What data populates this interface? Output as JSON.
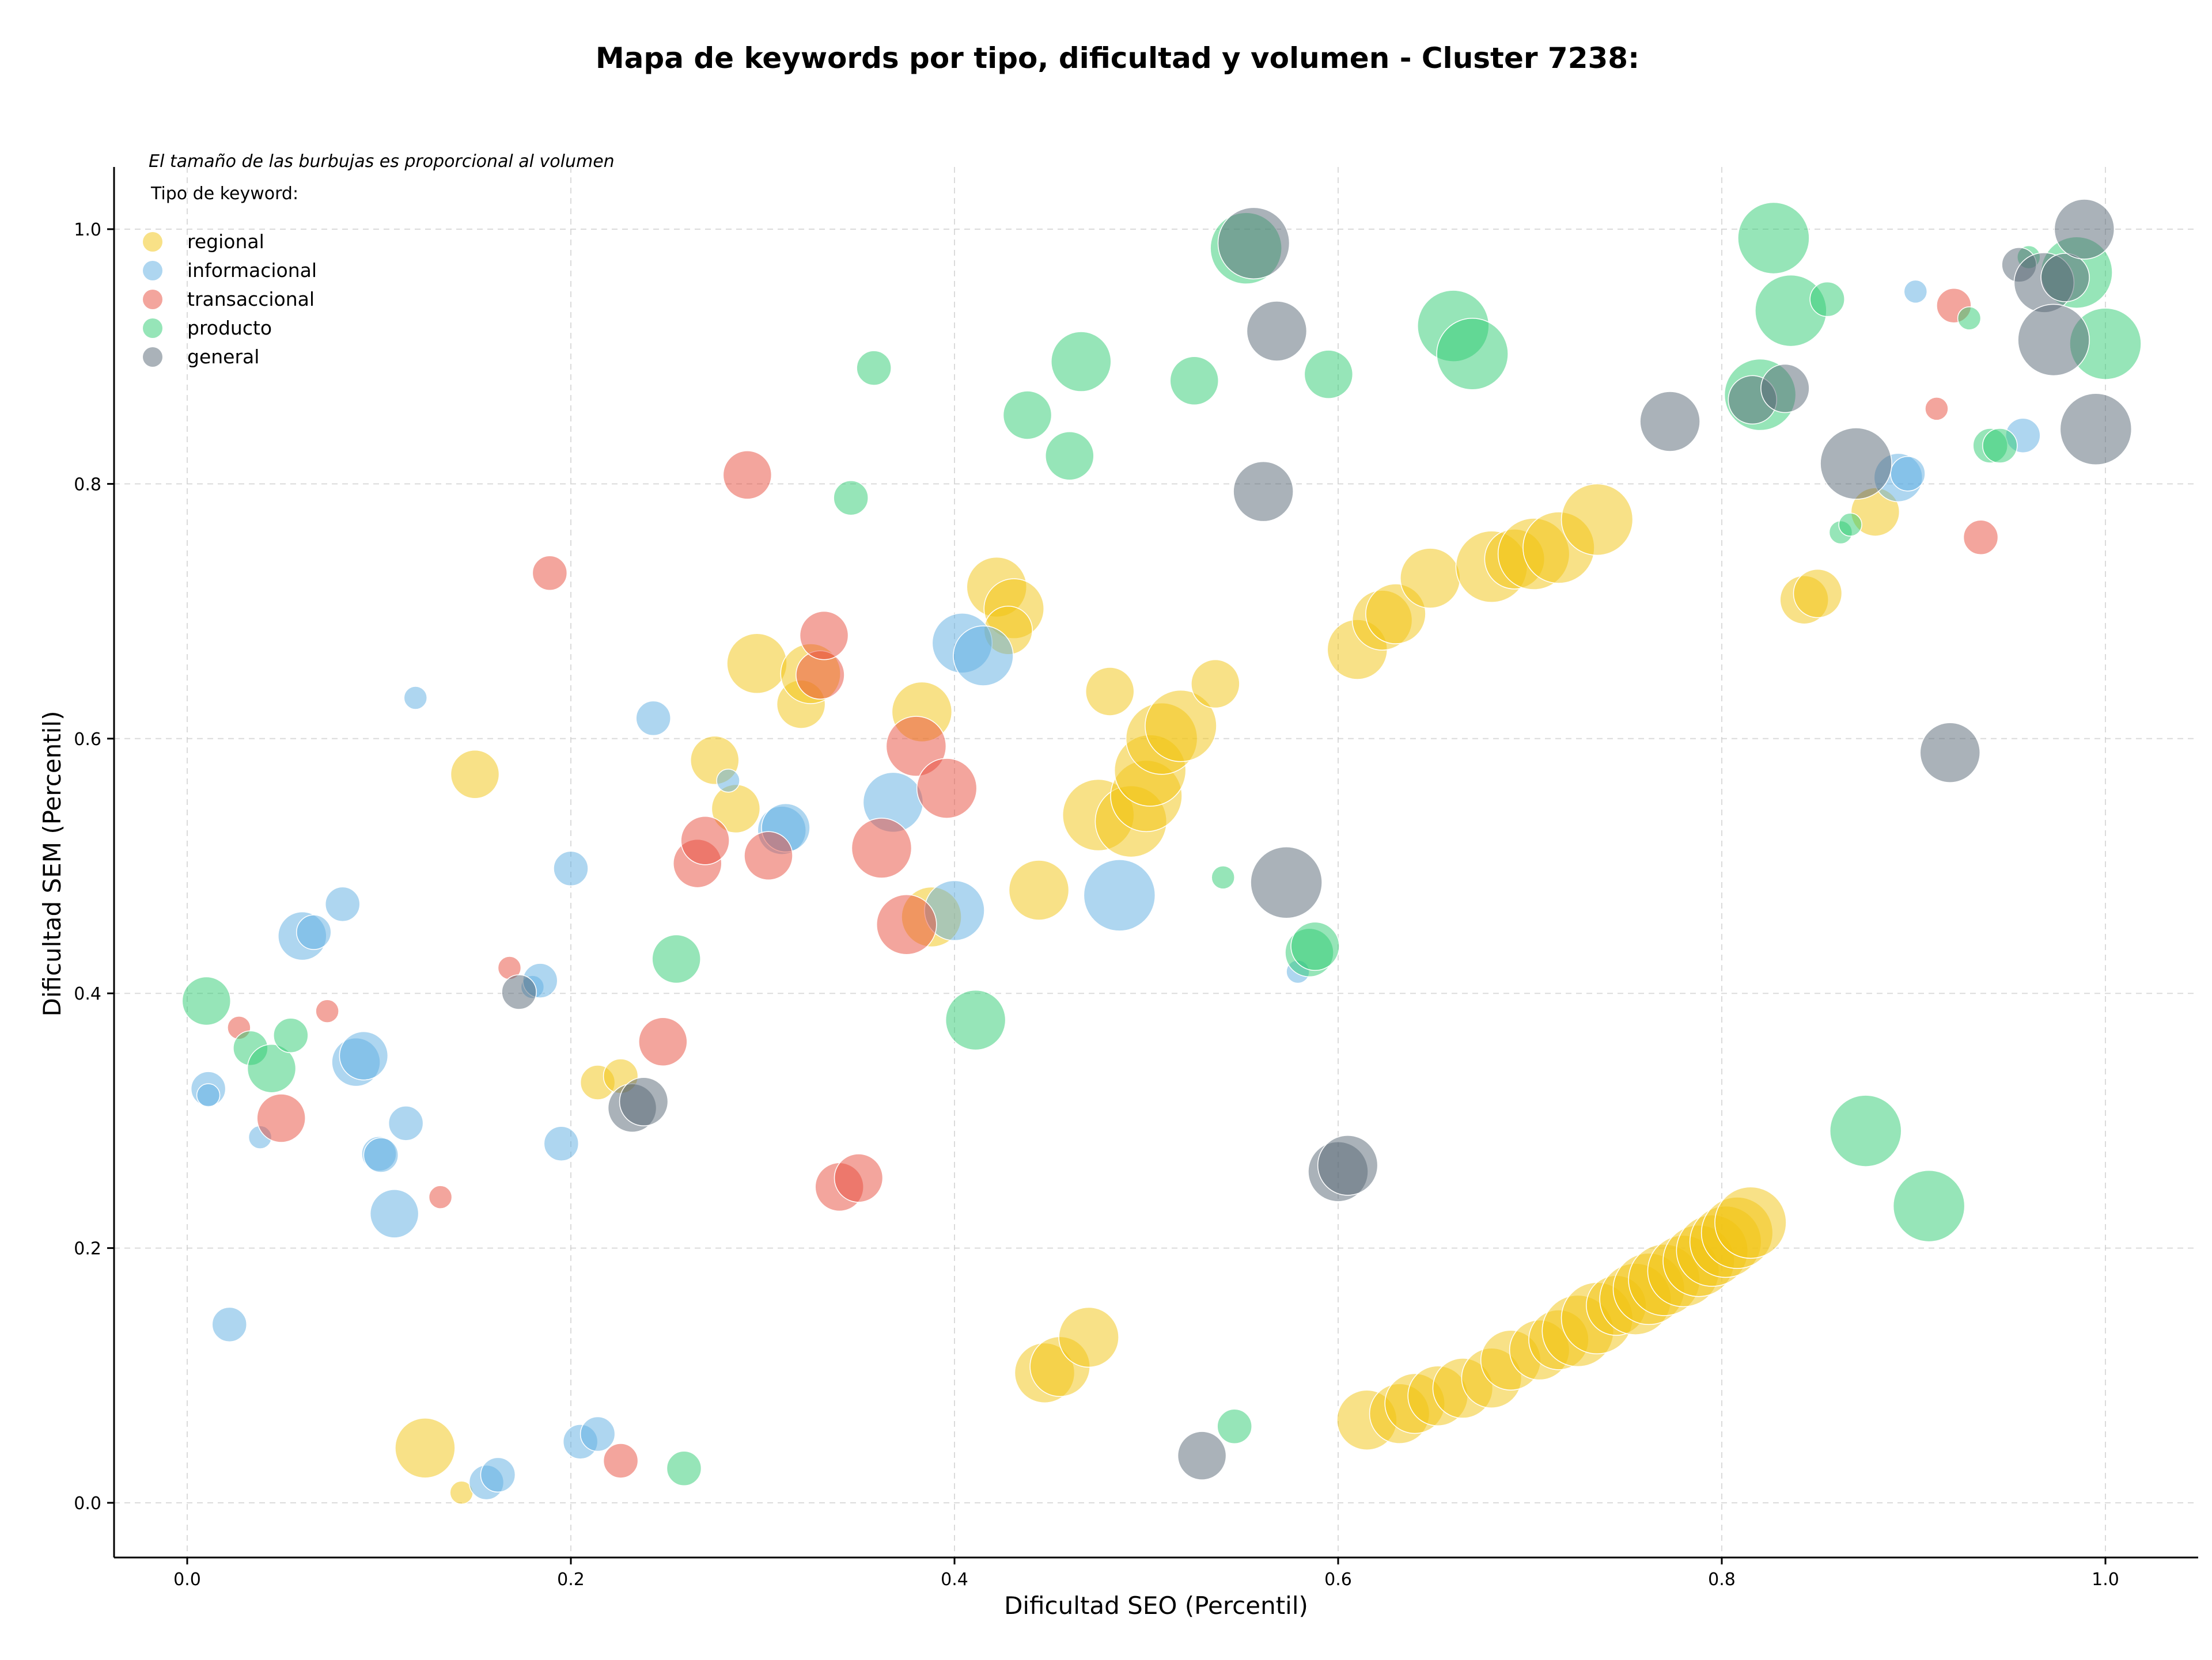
{
  "chart_data": {
    "type": "scatter",
    "title": "Mapa de keywords por tipo, dificultad y volumen - Cluster 7238:",
    "xlabel": "Dificultad SEO (Percentil)",
    "ylabel": "Dificultad SEM (Percentil)",
    "xlim": [
      -0.04,
      1.05
    ],
    "ylim": [
      -0.04,
      1.05
    ],
    "xticks": [
      "0.0",
      "0.2",
      "0.4",
      "0.6",
      "0.8",
      "1.0"
    ],
    "yticks": [
      "0.0",
      "0.2",
      "0.4",
      "0.6",
      "0.8",
      "1.0"
    ],
    "grid": true,
    "size_note": "El tamaño de las burbujas es proporcional al volumen",
    "legend_title": "Tipo de keyword:",
    "legend_position": "top-left",
    "series": [
      {
        "name": "regional",
        "color": "#f1c40f",
        "points": [
          [
            0.15,
            0.572,
            3
          ],
          [
            0.124,
            0.043,
            4
          ],
          [
            0.143,
            0.008,
            1
          ],
          [
            0.214,
            0.33,
            2
          ],
          [
            0.226,
            0.335,
            2
          ],
          [
            0.275,
            0.583,
            3
          ],
          [
            0.286,
            0.545,
            3
          ],
          [
            0.297,
            0.659,
            4
          ],
          [
            0.32,
            0.627,
            3
          ],
          [
            0.325,
            0.651,
            4
          ],
          [
            0.383,
            0.621,
            4
          ],
          [
            0.388,
            0.46,
            4
          ],
          [
            0.422,
            0.719,
            4
          ],
          [
            0.431,
            0.702,
            4
          ],
          [
            0.428,
            0.685,
            3
          ],
          [
            0.444,
            0.481,
            4
          ],
          [
            0.481,
            0.637,
            3
          ],
          [
            0.475,
            0.54,
            5
          ],
          [
            0.492,
            0.535,
            5
          ],
          [
            0.5,
            0.555,
            5
          ],
          [
            0.502,
            0.575,
            5
          ],
          [
            0.508,
            0.6,
            5
          ],
          [
            0.518,
            0.61,
            5
          ],
          [
            0.536,
            0.643,
            3
          ],
          [
            0.447,
            0.102,
            4
          ],
          [
            0.455,
            0.107,
            4
          ],
          [
            0.47,
            0.13,
            4
          ],
          [
            0.61,
            0.67,
            4
          ],
          [
            0.623,
            0.693,
            4
          ],
          [
            0.63,
            0.698,
            4
          ],
          [
            0.648,
            0.726,
            4
          ],
          [
            0.68,
            0.735,
            5
          ],
          [
            0.692,
            0.741,
            4
          ],
          [
            0.702,
            0.745,
            5
          ],
          [
            0.715,
            0.75,
            5
          ],
          [
            0.735,
            0.772,
            5
          ],
          [
            0.843,
            0.709,
            3
          ],
          [
            0.85,
            0.714,
            3
          ],
          [
            0.88,
            0.778,
            3
          ],
          [
            0.615,
            0.065,
            4
          ],
          [
            0.632,
            0.07,
            4
          ],
          [
            0.64,
            0.078,
            4
          ],
          [
            0.652,
            0.084,
            4
          ],
          [
            0.665,
            0.09,
            4
          ],
          [
            0.68,
            0.098,
            4
          ],
          [
            0.69,
            0.112,
            4
          ],
          [
            0.705,
            0.12,
            4
          ],
          [
            0.715,
            0.128,
            4
          ],
          [
            0.725,
            0.135,
            5
          ],
          [
            0.735,
            0.145,
            5
          ],
          [
            0.745,
            0.155,
            4
          ],
          [
            0.755,
            0.16,
            5
          ],
          [
            0.762,
            0.168,
            5
          ],
          [
            0.77,
            0.175,
            5
          ],
          [
            0.78,
            0.182,
            5
          ],
          [
            0.788,
            0.19,
            5
          ],
          [
            0.795,
            0.198,
            5
          ],
          [
            0.802,
            0.205,
            5
          ],
          [
            0.808,
            0.212,
            5
          ],
          [
            0.815,
            0.22,
            5
          ]
        ]
      },
      {
        "name": "informacional",
        "color": "#5dade2",
        "points": [
          [
            0.011,
            0.325,
            2
          ],
          [
            0.011,
            0.32,
            1
          ],
          [
            0.022,
            0.14,
            2
          ],
          [
            0.038,
            0.287,
            1
          ],
          [
            0.06,
            0.445,
            3
          ],
          [
            0.066,
            0.448,
            2
          ],
          [
            0.081,
            0.47,
            2
          ],
          [
            0.088,
            0.346,
            3
          ],
          [
            0.092,
            0.351,
            3
          ],
          [
            0.1,
            0.274,
            2
          ],
          [
            0.101,
            0.273,
            2
          ],
          [
            0.108,
            0.227,
            3
          ],
          [
            0.114,
            0.298,
            2
          ],
          [
            0.119,
            0.632,
            1
          ],
          [
            0.156,
            0.016,
            2
          ],
          [
            0.162,
            0.022,
            2
          ],
          [
            0.18,
            0.405,
            1
          ],
          [
            0.184,
            0.41,
            2
          ],
          [
            0.195,
            0.282,
            2
          ],
          [
            0.2,
            0.498,
            2
          ],
          [
            0.205,
            0.048,
            2
          ],
          [
            0.214,
            0.054,
            2
          ],
          [
            0.243,
            0.616,
            2
          ],
          [
            0.282,
            0.567,
            1
          ],
          [
            0.31,
            0.528,
            3
          ],
          [
            0.312,
            0.53,
            3
          ],
          [
            0.368,
            0.55,
            4
          ],
          [
            0.4,
            0.465,
            4
          ],
          [
            0.404,
            0.675,
            4
          ],
          [
            0.415,
            0.665,
            4
          ],
          [
            0.486,
            0.477,
            5
          ],
          [
            0.579,
            0.417,
            1
          ],
          [
            0.892,
            0.805,
            3
          ],
          [
            0.897,
            0.808,
            2
          ],
          [
            0.901,
            0.951,
            1
          ],
          [
            0.957,
            0.838,
            2
          ]
        ]
      },
      {
        "name": "transaccional",
        "color": "#e74c3c",
        "points": [
          [
            0.027,
            0.373,
            1
          ],
          [
            0.049,
            0.302,
            3
          ],
          [
            0.073,
            0.386,
            1
          ],
          [
            0.132,
            0.24,
            1
          ],
          [
            0.168,
            0.42,
            1
          ],
          [
            0.189,
            0.73,
            2
          ],
          [
            0.226,
            0.033,
            2
          ],
          [
            0.248,
            0.362,
            3
          ],
          [
            0.266,
            0.502,
            3
          ],
          [
            0.27,
            0.52,
            3
          ],
          [
            0.292,
            0.807,
            3
          ],
          [
            0.303,
            0.508,
            3
          ],
          [
            0.33,
            0.65,
            3
          ],
          [
            0.332,
            0.681,
            3
          ],
          [
            0.34,
            0.248,
            3
          ],
          [
            0.35,
            0.255,
            3
          ],
          [
            0.362,
            0.514,
            4
          ],
          [
            0.375,
            0.454,
            4
          ],
          [
            0.38,
            0.594,
            4
          ],
          [
            0.396,
            0.561,
            4
          ],
          [
            0.912,
            0.859,
            1
          ],
          [
            0.921,
            0.94,
            2
          ],
          [
            0.935,
            0.758,
            2
          ]
        ]
      },
      {
        "name": "producto",
        "color": "#2ecc71",
        "points": [
          [
            0.01,
            0.394,
            3
          ],
          [
            0.033,
            0.357,
            2
          ],
          [
            0.044,
            0.341,
            3
          ],
          [
            0.054,
            0.367,
            2
          ],
          [
            0.255,
            0.427,
            3
          ],
          [
            0.259,
            0.027,
            2
          ],
          [
            0.346,
            0.789,
            2
          ],
          [
            0.358,
            0.891,
            2
          ],
          [
            0.411,
            0.379,
            4
          ],
          [
            0.438,
            0.854,
            3
          ],
          [
            0.46,
            0.822,
            3
          ],
          [
            0.466,
            0.896,
            4
          ],
          [
            0.525,
            0.881,
            3
          ],
          [
            0.54,
            0.491,
            1
          ],
          [
            0.546,
            0.06,
            2
          ],
          [
            0.552,
            0.985,
            5
          ],
          [
            0.585,
            0.432,
            3
          ],
          [
            0.588,
            0.437,
            3
          ],
          [
            0.595,
            0.886,
            3
          ],
          [
            0.66,
            0.924,
            5
          ],
          [
            0.67,
            0.902,
            5
          ],
          [
            0.82,
            0.87,
            5
          ],
          [
            0.827,
            0.993,
            5
          ],
          [
            0.836,
            0.936,
            5
          ],
          [
            0.855,
            0.945,
            2
          ],
          [
            0.862,
            0.762,
            1
          ],
          [
            0.867,
            0.768,
            1
          ],
          [
            0.875,
            0.292,
            5
          ],
          [
            0.908,
            0.233,
            5
          ],
          [
            0.929,
            0.93,
            1
          ],
          [
            0.94,
            0.83,
            2
          ],
          [
            0.945,
            0.83,
            2
          ],
          [
            0.96,
            0.978,
            1
          ],
          [
            0.985,
            0.966,
            5
          ],
          [
            1.0,
            0.91,
            5
          ]
        ]
      },
      {
        "name": "general",
        "color": "#566573",
        "points": [
          [
            0.173,
            0.401,
            2
          ],
          [
            0.232,
            0.31,
            3
          ],
          [
            0.238,
            0.315,
            3
          ],
          [
            0.529,
            0.037,
            3
          ],
          [
            0.556,
            0.989,
            5
          ],
          [
            0.561,
            0.794,
            4
          ],
          [
            0.568,
            0.92,
            4
          ],
          [
            0.573,
            0.487,
            5
          ],
          [
            0.6,
            0.26,
            4
          ],
          [
            0.605,
            0.265,
            4
          ],
          [
            0.773,
            0.849,
            4
          ],
          [
            0.816,
            0.866,
            3
          ],
          [
            0.833,
            0.875,
            3
          ],
          [
            0.87,
            0.816,
            5
          ],
          [
            0.919,
            0.589,
            4
          ],
          [
            0.955,
            0.972,
            2
          ],
          [
            0.968,
            0.958,
            4
          ],
          [
            0.973,
            0.913,
            5
          ],
          [
            0.979,
            0.962,
            3
          ],
          [
            0.989,
            1.0,
            4
          ],
          [
            0.995,
            0.843,
            5
          ]
        ]
      }
    ]
  }
}
